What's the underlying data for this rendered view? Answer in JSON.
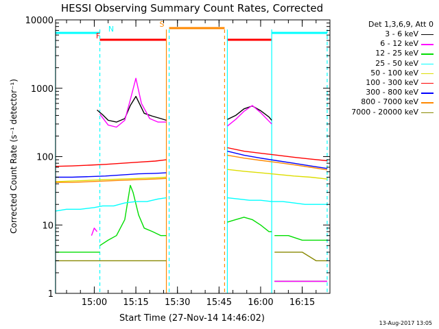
{
  "chart_data": {
    "type": "line",
    "title": "HESSI Observing Summary Count Rates, Corrected",
    "xlabel": "Start Time (27-Nov-14 14:46:02)",
    "ylabel": "Corrected Count Rate (s⁻¹ detector⁻¹)",
    "yscale": "log",
    "ylim": [
      1,
      10000
    ],
    "yticks": [
      1,
      10,
      100,
      1000,
      10000
    ],
    "yticklabels": [
      "1",
      "10",
      "100",
      "1000",
      "10000"
    ],
    "xlim": [
      "14:46:02",
      "16:25:00"
    ],
    "xticks": [
      "15:00",
      "15:15",
      "15:30",
      "15:45",
      "16:00",
      "16:15"
    ],
    "grid": false,
    "legend_position": "right",
    "legend_header": "Det 1,3,6,9, Att 0",
    "series": [
      {
        "name": "3 - 6 keV",
        "color": "#000000",
        "segments": [
          {
            "x": [
              "15:01",
              "15:03",
              "15:05",
              "15:08",
              "15:11",
              "15:13",
              "15:15",
              "15:18",
              "15:21",
              "15:24",
              "15:26"
            ],
            "y": [
              480,
              410,
              340,
              320,
              360,
              560,
              760,
              430,
              390,
              360,
              340
            ]
          },
          {
            "x": [
              "15:48",
              "15:51",
              "15:54",
              "15:57",
              "16:00",
              "16:03",
              "16:04"
            ],
            "y": [
              350,
              400,
              500,
              550,
              470,
              380,
              340
            ]
          },
          {
            "x": [
              "16:05",
              "16:10",
              "16:15",
              "16:20",
              "16:24"
            ],
            "y": [
              1.5,
              1.5,
              1.5,
              1.5,
              1.5
            ]
          }
        ]
      },
      {
        "name": "6 - 12 keV",
        "color": "#ff00ff",
        "segments": [
          {
            "x": [
              "14:59",
              "15:00",
              "15:01"
            ],
            "y": [
              7,
              9,
              8
            ]
          },
          {
            "x": [
              "15:02",
              "15:05",
              "15:08",
              "15:11",
              "15:13",
              "15:15",
              "15:17",
              "15:20",
              "15:23",
              "15:26"
            ],
            "y": [
              420,
              290,
              270,
              340,
              680,
              1400,
              600,
              360,
              320,
              320
            ]
          },
          {
            "x": [
              "15:48",
              "15:51",
              "15:54",
              "15:57",
              "16:00",
              "16:03",
              "16:04"
            ],
            "y": [
              280,
              350,
              460,
              560,
              440,
              330,
              300
            ]
          },
          {
            "x": [
              "16:05",
              "16:10",
              "16:15",
              "16:20",
              "16:24"
            ],
            "y": [
              1.5,
              1.5,
              1.5,
              1.5,
              1.5
            ]
          }
        ]
      },
      {
        "name": "12 - 25 keV",
        "color": "#00dd00",
        "segments": [
          {
            "x": [
              "14:46",
              "14:50",
              "14:55",
              "15:00",
              "15:02"
            ],
            "y": [
              4,
              4,
              4,
              4,
              4
            ]
          },
          {
            "x": [
              "15:02",
              "15:05",
              "15:08",
              "15:11",
              "15:13",
              "15:14",
              "15:16",
              "15:18",
              "15:21",
              "15:24",
              "15:26"
            ],
            "y": [
              5,
              6,
              7,
              12,
              38,
              30,
              14,
              9,
              8,
              7,
              7
            ]
          },
          {
            "x": [
              "15:48",
              "15:51",
              "15:54",
              "15:57",
              "16:00",
              "16:03",
              "16:04"
            ],
            "y": [
              11,
              12,
              13,
              12,
              10,
              8,
              8
            ]
          },
          {
            "x": [
              "16:05",
              "16:10",
              "16:15",
              "16:20",
              "16:24"
            ],
            "y": [
              7,
              7,
              6,
              6,
              6
            ]
          }
        ]
      },
      {
        "name": "25 - 50 keV",
        "color": "#00ffff",
        "segments": [
          {
            "x": [
              "14:46",
              "14:50",
              "14:55",
              "15:00",
              "15:03",
              "15:07",
              "15:11",
              "15:15",
              "15:19",
              "15:23",
              "15:26"
            ],
            "y": [
              16,
              17,
              17,
              18,
              19,
              19,
              21,
              22,
              22,
              24,
              25
            ]
          },
          {
            "x": [
              "15:48",
              "15:52",
              "15:56",
              "16:00",
              "16:04",
              "16:08",
              "16:12",
              "16:16",
              "16:20",
              "16:24"
            ],
            "y": [
              25,
              24,
              23,
              23,
              22,
              22,
              21,
              20,
              20,
              20
            ]
          }
        ]
      },
      {
        "name": "50 - 100 keV",
        "color": "#dddd00",
        "segments": [
          {
            "x": [
              "14:46",
              "14:52",
              "14:58",
              "15:04",
              "15:10",
              "15:16",
              "15:22",
              "15:26"
            ],
            "y": [
              43,
              44,
              45,
              46,
              47,
              48,
              49,
              50
            ]
          },
          {
            "x": [
              "15:48",
              "15:54",
              "16:00",
              "16:06",
              "16:12",
              "16:18",
              "16:24"
            ],
            "y": [
              65,
              61,
              58,
              55,
              52,
              50,
              47
            ]
          }
        ]
      },
      {
        "name": "100 - 300 keV",
        "color": "#ff0000",
        "segments": [
          {
            "x": [
              "14:46",
              "14:52",
              "14:58",
              "15:04",
              "15:10",
              "15:16",
              "15:22",
              "15:26"
            ],
            "y": [
              72,
              73,
              75,
              77,
              80,
              83,
              86,
              90
            ]
          },
          {
            "x": [
              "15:48",
              "15:54",
              "16:00",
              "16:06",
              "16:12",
              "16:18",
              "16:24"
            ],
            "y": [
              135,
              120,
              112,
              105,
              98,
              92,
              87
            ]
          }
        ]
      },
      {
        "name": "300 - 800 keV",
        "color": "#0000ff",
        "segments": [
          {
            "x": [
              "14:46",
              "14:52",
              "14:58",
              "15:04",
              "15:10",
              "15:16",
              "15:22",
              "15:26"
            ],
            "y": [
              50,
              50,
              51,
              52,
              54,
              56,
              57,
              58
            ]
          },
          {
            "x": [
              "15:48",
              "15:54",
              "16:00",
              "16:06",
              "16:12",
              "16:18",
              "16:24"
            ],
            "y": [
              120,
              105,
              95,
              87,
              80,
              73,
              67
            ]
          }
        ]
      },
      {
        "name": "800 - 7000 keV",
        "color": "#ff8800",
        "segments": [
          {
            "x": [
              "14:46",
              "14:52",
              "14:58",
              "15:04",
              "15:10",
              "15:16",
              "15:22",
              "15:26"
            ],
            "y": [
              42,
              42,
              43,
              44,
              45,
              46,
              47,
              48
            ]
          },
          {
            "x": [
              "15:48",
              "15:54",
              "16:00",
              "16:06",
              "16:12",
              "16:18",
              "16:24"
            ],
            "y": [
              105,
              95,
              88,
              82,
              76,
              70,
              64
            ]
          }
        ]
      },
      {
        "name": "7000 - 20000 keV",
        "color": "#888800",
        "segments": [
          {
            "x": [
              "14:46",
              "14:50",
              "14:55",
              "15:00",
              "15:02"
            ],
            "y": [
              3,
              3,
              3,
              3,
              3
            ]
          },
          {
            "x": [
              "15:02",
              "15:07",
              "15:12",
              "15:17",
              "15:22",
              "15:26"
            ],
            "y": [
              3,
              3,
              3,
              3,
              3,
              3
            ]
          },
          {
            "x": [
              "16:05",
              "16:10",
              "16:15",
              "16:20",
              "16:24"
            ],
            "y": [
              4,
              4,
              4,
              3,
              3
            ]
          }
        ]
      }
    ],
    "flags": [
      {
        "label": "N",
        "color": "#00ffff",
        "bars": [
          {
            "start": "14:46",
            "end": "15:02"
          },
          {
            "start": "16:04",
            "end": "16:24"
          }
        ]
      },
      {
        "label": "F",
        "color": "#ff0000",
        "bars": [
          {
            "start": "15:02",
            "end": "15:26"
          },
          {
            "start": "15:48",
            "end": "16:04"
          }
        ]
      },
      {
        "label": "S",
        "color": "#ff8800",
        "bars": [
          {
            "start": "15:27",
            "end": "15:47"
          }
        ]
      }
    ],
    "vlines": [
      {
        "x": "14:46",
        "color": "#00ffff",
        "style": "solid"
      },
      {
        "x": "15:02",
        "color": "#00ffff",
        "style": "dashed"
      },
      {
        "x": "15:26",
        "color": "#ff8800",
        "style": "solid"
      },
      {
        "x": "15:27",
        "color": "#00ffff",
        "style": "dashed"
      },
      {
        "x": "15:47",
        "color": "#ff8800",
        "style": "dashed"
      },
      {
        "x": "15:48",
        "color": "#00ffff",
        "style": "solid"
      },
      {
        "x": "16:04",
        "color": "#00ffff",
        "style": "solid"
      },
      {
        "x": "16:24",
        "color": "#00ffff",
        "style": "dashed"
      }
    ]
  },
  "footer": {
    "timestamp": "13-Aug-2017 13:05"
  }
}
